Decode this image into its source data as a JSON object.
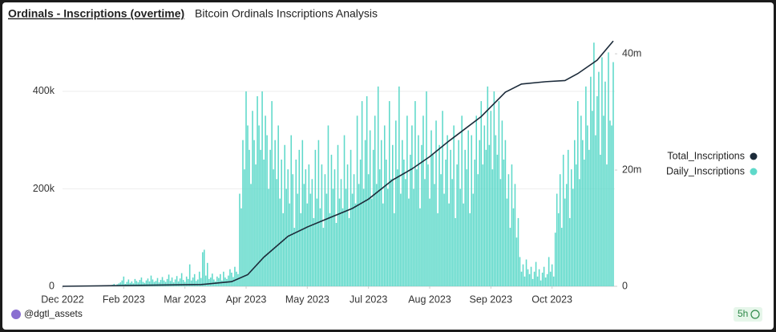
{
  "header": {
    "title": "Ordinals - Inscriptions (overtime)",
    "subtitle": "Bitcoin Ordinals Inscriptions Analysis"
  },
  "chart_data": {
    "type": "bar",
    "xlim": [
      "2022-12-28",
      "2023-12-06"
    ],
    "xticks": [
      {
        "value": "2022-12-28",
        "label": "Dec 2022"
      },
      {
        "value": "2023-02-04",
        "label": "Feb 2023"
      },
      {
        "value": "2023-03-14",
        "label": "Mar 2023"
      },
      {
        "value": "2023-04-21",
        "label": "Apr 2023"
      },
      {
        "value": "2023-05-29",
        "label": "May 2023"
      },
      {
        "value": "2023-07-06",
        "label": "Jul 2023"
      },
      {
        "value": "2023-08-13",
        "label": "Aug 2023"
      },
      {
        "value": "2023-09-20",
        "label": "Sep 2023"
      },
      {
        "value": "2023-10-28",
        "label": "Oct 2023"
      }
    ],
    "ylim": [
      0,
      520000
    ],
    "yticks": [
      0,
      {
        "value": 200000,
        "label": "200k"
      },
      {
        "value": 400000,
        "label": "400k"
      }
    ],
    "y2lim": [
      0,
      43600000
    ],
    "y2ticks": [
      0,
      {
        "value": 20000000,
        "label": "20m"
      },
      {
        "value": 40000000,
        "label": "40m"
      }
    ],
    "legend": "right",
    "series": [
      {
        "name": "Total_Inscriptions",
        "type": "line",
        "axis": "y2",
        "color": "#1c2b3a",
        "x": [
          "2022-12-28",
          "2023-03-24",
          "2023-04-12",
          "2023-04-22",
          "2023-05-02",
          "2023-05-17",
          "2023-05-29",
          "2023-06-11",
          "2023-06-26",
          "2023-07-06",
          "2023-07-21",
          "2023-08-02",
          "2023-08-13",
          "2023-08-25",
          "2023-09-14",
          "2023-09-29",
          "2023-10-09",
          "2023-10-24",
          "2023-11-05",
          "2023-11-13",
          "2023-11-25",
          "2023-12-05"
        ],
        "values": [
          0,
          300000,
          800000,
          2000000,
          5000000,
          8600000,
          10200000,
          11700000,
          13400000,
          15000000,
          18300000,
          20200000,
          22300000,
          25000000,
          29200000,
          33400000,
          34800000,
          35200000,
          35400000,
          36600000,
          38900000,
          42200000
        ]
      },
      {
        "name": "Daily_Inscriptions",
        "type": "bar",
        "color": "#5fd9ca",
        "x": [
          "2023-01-28",
          "2023-01-29",
          "2023-01-30",
          "2023-01-31",
          "2023-02-01",
          "2023-02-02",
          "2023-02-03",
          "2023-02-04",
          "2023-02-05",
          "2023-02-06",
          "2023-02-07",
          "2023-02-08",
          "2023-02-09",
          "2023-02-10",
          "2023-02-11",
          "2023-02-12",
          "2023-02-13",
          "2023-02-14",
          "2023-02-15",
          "2023-02-16",
          "2023-02-17",
          "2023-02-18",
          "2023-02-19",
          "2023-02-20",
          "2023-02-21",
          "2023-02-22",
          "2023-02-23",
          "2023-02-24",
          "2023-02-25",
          "2023-02-26",
          "2023-02-27",
          "2023-02-28",
          "2023-03-01",
          "2023-03-02",
          "2023-03-03",
          "2023-03-04",
          "2023-03-05",
          "2023-03-06",
          "2023-03-07",
          "2023-03-08",
          "2023-03-09",
          "2023-03-10",
          "2023-03-11",
          "2023-03-12",
          "2023-03-13",
          "2023-03-14",
          "2023-03-15",
          "2023-03-16",
          "2023-03-17",
          "2023-03-18",
          "2023-03-19",
          "2023-03-20",
          "2023-03-21",
          "2023-03-22",
          "2023-03-23",
          "2023-03-24",
          "2023-03-25",
          "2023-03-26",
          "2023-03-27",
          "2023-03-28",
          "2023-03-29",
          "2023-03-30",
          "2023-03-31",
          "2023-04-01",
          "2023-04-02",
          "2023-04-03",
          "2023-04-04",
          "2023-04-05",
          "2023-04-06",
          "2023-04-07",
          "2023-04-08",
          "2023-04-09",
          "2023-04-10",
          "2023-04-11",
          "2023-04-12",
          "2023-04-13",
          "2023-04-14",
          "2023-04-15",
          "2023-04-16",
          "2023-04-17",
          "2023-04-18",
          "2023-04-19",
          "2023-04-20",
          "2023-04-21",
          "2023-04-22",
          "2023-04-23",
          "2023-04-24",
          "2023-04-25",
          "2023-04-26",
          "2023-04-27",
          "2023-04-28",
          "2023-04-29",
          "2023-04-30",
          "2023-05-01",
          "2023-05-02",
          "2023-05-03",
          "2023-05-04",
          "2023-05-05",
          "2023-05-06",
          "2023-05-07",
          "2023-05-08",
          "2023-05-09",
          "2023-05-10",
          "2023-05-11",
          "2023-05-12",
          "2023-05-13",
          "2023-05-14",
          "2023-05-15",
          "2023-05-16",
          "2023-05-17",
          "2023-05-18",
          "2023-05-19",
          "2023-05-20",
          "2023-05-21",
          "2023-05-22",
          "2023-05-23",
          "2023-05-24",
          "2023-05-25",
          "2023-05-26",
          "2023-05-27",
          "2023-05-28",
          "2023-05-29",
          "2023-05-30",
          "2023-05-31",
          "2023-06-01",
          "2023-06-02",
          "2023-06-03",
          "2023-06-04",
          "2023-06-05",
          "2023-06-06",
          "2023-06-07",
          "2023-06-08",
          "2023-06-09",
          "2023-06-10",
          "2023-06-11",
          "2023-06-12",
          "2023-06-13",
          "2023-06-14",
          "2023-06-15",
          "2023-06-16",
          "2023-06-17",
          "2023-06-18",
          "2023-06-19",
          "2023-06-20",
          "2023-06-21",
          "2023-06-22",
          "2023-06-23",
          "2023-06-24",
          "2023-06-25",
          "2023-06-26",
          "2023-06-27",
          "2023-06-28",
          "2023-06-29",
          "2023-06-30",
          "2023-07-01",
          "2023-07-02",
          "2023-07-03",
          "2023-07-04",
          "2023-07-05",
          "2023-07-06",
          "2023-07-07",
          "2023-07-08",
          "2023-07-09",
          "2023-07-10",
          "2023-07-11",
          "2023-07-12",
          "2023-07-13",
          "2023-07-14",
          "2023-07-15",
          "2023-07-16",
          "2023-07-17",
          "2023-07-18",
          "2023-07-19",
          "2023-07-20",
          "2023-07-21",
          "2023-07-22",
          "2023-07-23",
          "2023-07-24",
          "2023-07-25",
          "2023-07-26",
          "2023-07-27",
          "2023-07-28",
          "2023-07-29",
          "2023-07-30",
          "2023-07-31",
          "2023-08-01",
          "2023-08-02",
          "2023-08-03",
          "2023-08-04",
          "2023-08-05",
          "2023-08-06",
          "2023-08-07",
          "2023-08-08",
          "2023-08-09",
          "2023-08-10",
          "2023-08-11",
          "2023-08-12",
          "2023-08-13",
          "2023-08-14",
          "2023-08-15",
          "2023-08-16",
          "2023-08-17",
          "2023-08-18",
          "2023-08-19",
          "2023-08-20",
          "2023-08-21",
          "2023-08-22",
          "2023-08-23",
          "2023-08-24",
          "2023-08-25",
          "2023-08-26",
          "2023-08-27",
          "2023-08-28",
          "2023-08-29",
          "2023-08-30",
          "2023-08-31",
          "2023-09-01",
          "2023-09-02",
          "2023-09-03",
          "2023-09-04",
          "2023-09-05",
          "2023-09-06",
          "2023-09-07",
          "2023-09-08",
          "2023-09-09",
          "2023-09-10",
          "2023-09-11",
          "2023-09-12",
          "2023-09-13",
          "2023-09-14",
          "2023-09-15",
          "2023-09-16",
          "2023-09-17",
          "2023-09-18",
          "2023-09-19",
          "2023-09-20",
          "2023-09-21",
          "2023-09-22",
          "2023-09-23",
          "2023-09-24",
          "2023-09-25",
          "2023-09-26",
          "2023-09-27",
          "2023-09-28",
          "2023-09-29",
          "2023-09-30",
          "2023-10-01",
          "2023-10-02",
          "2023-10-03",
          "2023-10-04",
          "2023-10-05",
          "2023-10-06",
          "2023-10-07",
          "2023-10-08",
          "2023-10-09",
          "2023-10-10",
          "2023-10-11",
          "2023-10-12",
          "2023-10-13",
          "2023-10-14",
          "2023-10-15",
          "2023-10-16",
          "2023-10-17",
          "2023-10-18",
          "2023-10-19",
          "2023-10-20",
          "2023-10-21",
          "2023-10-22",
          "2023-10-23",
          "2023-10-24",
          "2023-10-25",
          "2023-10-26",
          "2023-10-27",
          "2023-10-28",
          "2023-10-29",
          "2023-10-30",
          "2023-10-31",
          "2023-11-01",
          "2023-11-02",
          "2023-11-03",
          "2023-11-04",
          "2023-11-05",
          "2023-11-06",
          "2023-11-07",
          "2023-11-08",
          "2023-11-09",
          "2023-11-10",
          "2023-11-11",
          "2023-11-12",
          "2023-11-13",
          "2023-11-14",
          "2023-11-15",
          "2023-11-16",
          "2023-11-17",
          "2023-11-18",
          "2023-11-19",
          "2023-11-20",
          "2023-11-21",
          "2023-11-22",
          "2023-11-23",
          "2023-11-24",
          "2023-11-25",
          "2023-11-26",
          "2023-11-27",
          "2023-11-28",
          "2023-11-29",
          "2023-11-30",
          "2023-12-01",
          "2023-12-02",
          "2023-12-03",
          "2023-12-04",
          "2023-12-05"
        ],
        "values": [
          3000,
          5000,
          2000,
          4000,
          6000,
          8000,
          12000,
          20000,
          5000,
          9000,
          14000,
          7000,
          10000,
          6000,
          15000,
          11000,
          8000,
          13000,
          18000,
          9000,
          7000,
          12000,
          16000,
          10000,
          22000,
          14000,
          9000,
          11000,
          17000,
          8000,
          13000,
          19000,
          12000,
          9000,
          15000,
          24000,
          11000,
          18000,
          8000,
          14000,
          21000,
          10000,
          16000,
          27000,
          13000,
          9000,
          20000,
          15000,
          45000,
          12000,
          18000,
          25000,
          11000,
          14000,
          30000,
          17000,
          70000,
          75000,
          22000,
          48000,
          15000,
          18000,
          26000,
          14000,
          10000,
          20000,
          17000,
          25000,
          12000,
          30000,
          18000,
          15000,
          22000,
          35000,
          28000,
          19000,
          40000,
          30000,
          25000,
          190000,
          160000,
          300000,
          240000,
          400000,
          330000,
          280000,
          210000,
          360000,
          300000,
          250000,
          390000,
          330000,
          280000,
          400000,
          260000,
          350000,
          310000,
          200000,
          280000,
          380000,
          240000,
          300000,
          220000,
          330000,
          180000,
          260000,
          150000,
          290000,
          200000,
          240000,
          170000,
          310000,
          230000,
          120000,
          260000,
          190000,
          280000,
          150000,
          300000,
          210000,
          240000,
          170000,
          250000,
          190000,
          220000,
          140000,
          280000,
          180000,
          300000,
          160000,
          250000,
          120000,
          230000,
          190000,
          330000,
          150000,
          270000,
          200000,
          240000,
          130000,
          290000,
          180000,
          220000,
          160000,
          310000,
          200000,
          250000,
          140000,
          280000,
          190000,
          230000,
          170000,
          350000,
          210000,
          260000,
          380000,
          200000,
          300000,
          390000,
          230000,
          320000,
          180000,
          280000,
          350000,
          210000,
          410000,
          240000,
          300000,
          170000,
          330000,
          260000,
          200000,
          380000,
          220000,
          290000,
          150000,
          340000,
          240000,
          410000,
          190000,
          300000,
          260000,
          220000,
          350000,
          180000,
          270000,
          330000,
          200000,
          380000,
          240000,
          310000,
          160000,
          290000,
          350000,
          220000,
          400000,
          250000,
          180000,
          320000,
          270000,
          210000,
          340000,
          150000,
          290000,
          230000,
          360000,
          190000,
          260000,
          310000,
          170000,
          280000,
          220000,
          330000,
          140000,
          250000,
          300000,
          200000,
          350000,
          170000,
          280000,
          240000,
          320000,
          150000,
          310000,
          190000,
          260000,
          350000,
          230000,
          300000,
          380000,
          250000,
          330000,
          280000,
          410000,
          290000,
          360000,
          240000,
          400000,
          310000,
          270000,
          380000,
          220000,
          340000,
          260000,
          300000,
          180000,
          230000,
          120000,
          250000,
          160000,
          210000,
          100000,
          140000,
          60000,
          30000,
          45000,
          20000,
          55000,
          35000,
          25000,
          40000,
          15000,
          30000,
          50000,
          20000,
          35000,
          12000,
          28000,
          40000,
          18000,
          25000,
          60000,
          30000,
          45000,
          20000,
          110000,
          190000,
          150000,
          230000,
          120000,
          270000,
          180000,
          210000,
          280000,
          140000,
          240000,
          200000,
          300000,
          250000,
          380000,
          220000,
          350000,
          300000,
          260000,
          410000,
          330000,
          280000,
          430000,
          360000,
          500000,
          310000,
          390000,
          440000,
          270000,
          470000,
          350000,
          420000,
          250000,
          480000,
          340000,
          330000,
          460000
        ]
      }
    ]
  },
  "footer": {
    "author": "@dgtl_assets",
    "age": "5h"
  }
}
